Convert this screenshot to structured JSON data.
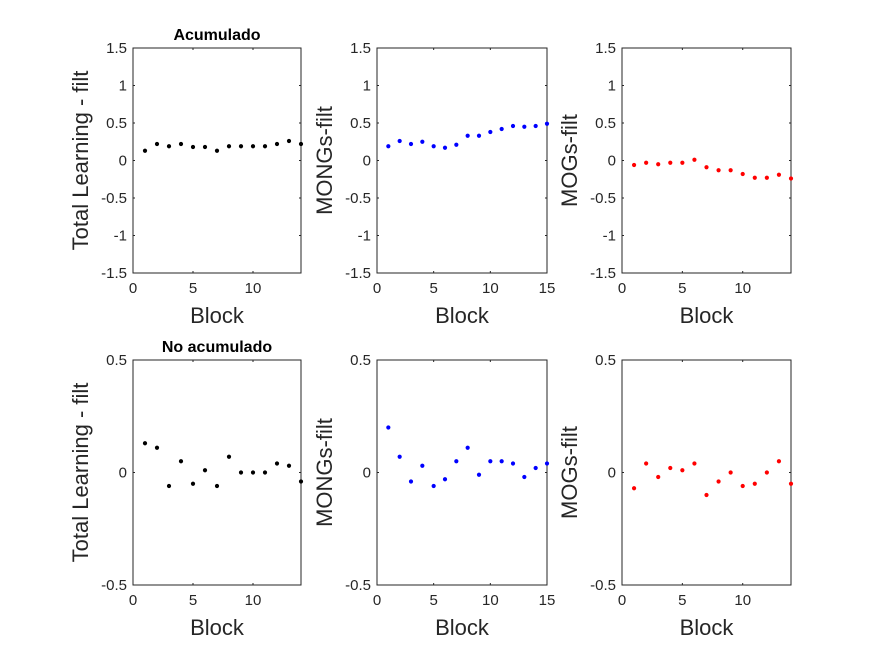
{
  "chart_data": [
    {
      "type": "scatter",
      "title": "Acumulado",
      "xlabel": "Block",
      "ylabel": "Total Learning - filt",
      "xlim": [
        0,
        14
      ],
      "ylim": [
        -1.5,
        1.5
      ],
      "xticks": [
        0,
        5,
        10
      ],
      "yticks": [
        -1.5,
        -1,
        -0.5,
        0,
        0.5,
        1,
        1.5
      ],
      "ytick_labels": [
        "-1.5",
        "-1",
        "-0.5",
        "0",
        "0.5",
        "1",
        "1.5"
      ],
      "color": "#000000",
      "x": [
        1,
        2,
        3,
        4,
        5,
        6,
        7,
        8,
        9,
        10,
        11,
        12,
        13,
        14
      ],
      "y": [
        0.13,
        0.22,
        0.19,
        0.22,
        0.18,
        0.18,
        0.13,
        0.19,
        0.19,
        0.19,
        0.19,
        0.22,
        0.26,
        0.22
      ]
    },
    {
      "type": "scatter",
      "title": "",
      "xlabel": "Block",
      "ylabel": "MONGs-filt",
      "xlim": [
        0,
        15
      ],
      "ylim": [
        -1.5,
        1.5
      ],
      "xticks": [
        0,
        5,
        10,
        15
      ],
      "yticks": [
        -1.5,
        -1,
        -0.5,
        0,
        0.5,
        1,
        1.5
      ],
      "ytick_labels": [
        "-1.5",
        "-1",
        "-0.5",
        "0",
        "0.5",
        "1",
        "1.5"
      ],
      "color": "#0000ff",
      "x": [
        1,
        2,
        3,
        4,
        5,
        6,
        7,
        8,
        9,
        10,
        11,
        12,
        13,
        14,
        15
      ],
      "y": [
        0.19,
        0.26,
        0.22,
        0.25,
        0.19,
        0.17,
        0.21,
        0.33,
        0.33,
        0.38,
        0.42,
        0.46,
        0.45,
        0.46,
        0.49
      ]
    },
    {
      "type": "scatter",
      "title": "",
      "xlabel": "Block",
      "ylabel": "MOGs-filt",
      "xlim": [
        0,
        14
      ],
      "ylim": [
        -1.5,
        1.5
      ],
      "xticks": [
        0,
        5,
        10
      ],
      "yticks": [
        -1.5,
        -1,
        -0.5,
        0,
        0.5,
        1,
        1.5
      ],
      "ytick_labels": [
        "-1.5",
        "-1",
        "-0.5",
        "0",
        "0.5",
        "1",
        "1.5"
      ],
      "color": "#ff0000",
      "x": [
        1,
        2,
        3,
        4,
        5,
        6,
        7,
        8,
        9,
        10,
        11,
        12,
        13,
        14
      ],
      "y": [
        -0.06,
        -0.03,
        -0.05,
        -0.03,
        -0.03,
        0.01,
        -0.09,
        -0.13,
        -0.13,
        -0.18,
        -0.23,
        -0.23,
        -0.19,
        -0.24
      ]
    },
    {
      "type": "scatter",
      "title": "No acumulado",
      "xlabel": "Block",
      "ylabel": "Total Learning - filt",
      "xlim": [
        0,
        14
      ],
      "ylim": [
        -0.5,
        0.5
      ],
      "xticks": [
        0,
        5,
        10
      ],
      "yticks": [
        -0.5,
        0,
        0.5
      ],
      "ytick_labels": [
        "-0.5",
        "0",
        "0.5"
      ],
      "color": "#000000",
      "x": [
        1,
        2,
        3,
        4,
        5,
        6,
        7,
        8,
        9,
        10,
        11,
        12,
        13,
        14
      ],
      "y": [
        0.13,
        0.11,
        -0.06,
        0.05,
        -0.05,
        0.01,
        -0.06,
        0.07,
        0.0,
        0.0,
        0.0,
        0.04,
        0.03,
        -0.04
      ]
    },
    {
      "type": "scatter",
      "title": "",
      "xlabel": "Block",
      "ylabel": "MONGs-filt",
      "xlim": [
        0,
        15
      ],
      "ylim": [
        -0.5,
        0.5
      ],
      "xticks": [
        0,
        5,
        10,
        15
      ],
      "yticks": [
        -0.5,
        0,
        0.5
      ],
      "ytick_labels": [
        "-0.5",
        "0",
        "0.5"
      ],
      "color": "#0000ff",
      "x": [
        1,
        2,
        3,
        4,
        5,
        6,
        7,
        8,
        9,
        10,
        11,
        12,
        13,
        14,
        15
      ],
      "y": [
        0.2,
        0.07,
        -0.04,
        0.03,
        -0.06,
        -0.03,
        0.05,
        0.11,
        -0.01,
        0.05,
        0.05,
        0.04,
        -0.02,
        0.02,
        0.04
      ]
    },
    {
      "type": "scatter",
      "title": "",
      "xlabel": "Block",
      "ylabel": "MOGs-filt",
      "xlim": [
        0,
        14
      ],
      "ylim": [
        -0.5,
        0.5
      ],
      "xticks": [
        0,
        5,
        10
      ],
      "yticks": [
        -0.5,
        0,
        0.5
      ],
      "ytick_labels": [
        "-0.5",
        "0",
        "0.5"
      ],
      "color": "#ff0000",
      "x": [
        1,
        2,
        3,
        4,
        5,
        6,
        7,
        8,
        9,
        10,
        11,
        12,
        13,
        14
      ],
      "y": [
        -0.07,
        0.04,
        -0.02,
        0.02,
        0.01,
        0.04,
        -0.1,
        -0.04,
        0.0,
        -0.06,
        -0.05,
        0.0,
        0.05,
        -0.05
      ]
    }
  ]
}
